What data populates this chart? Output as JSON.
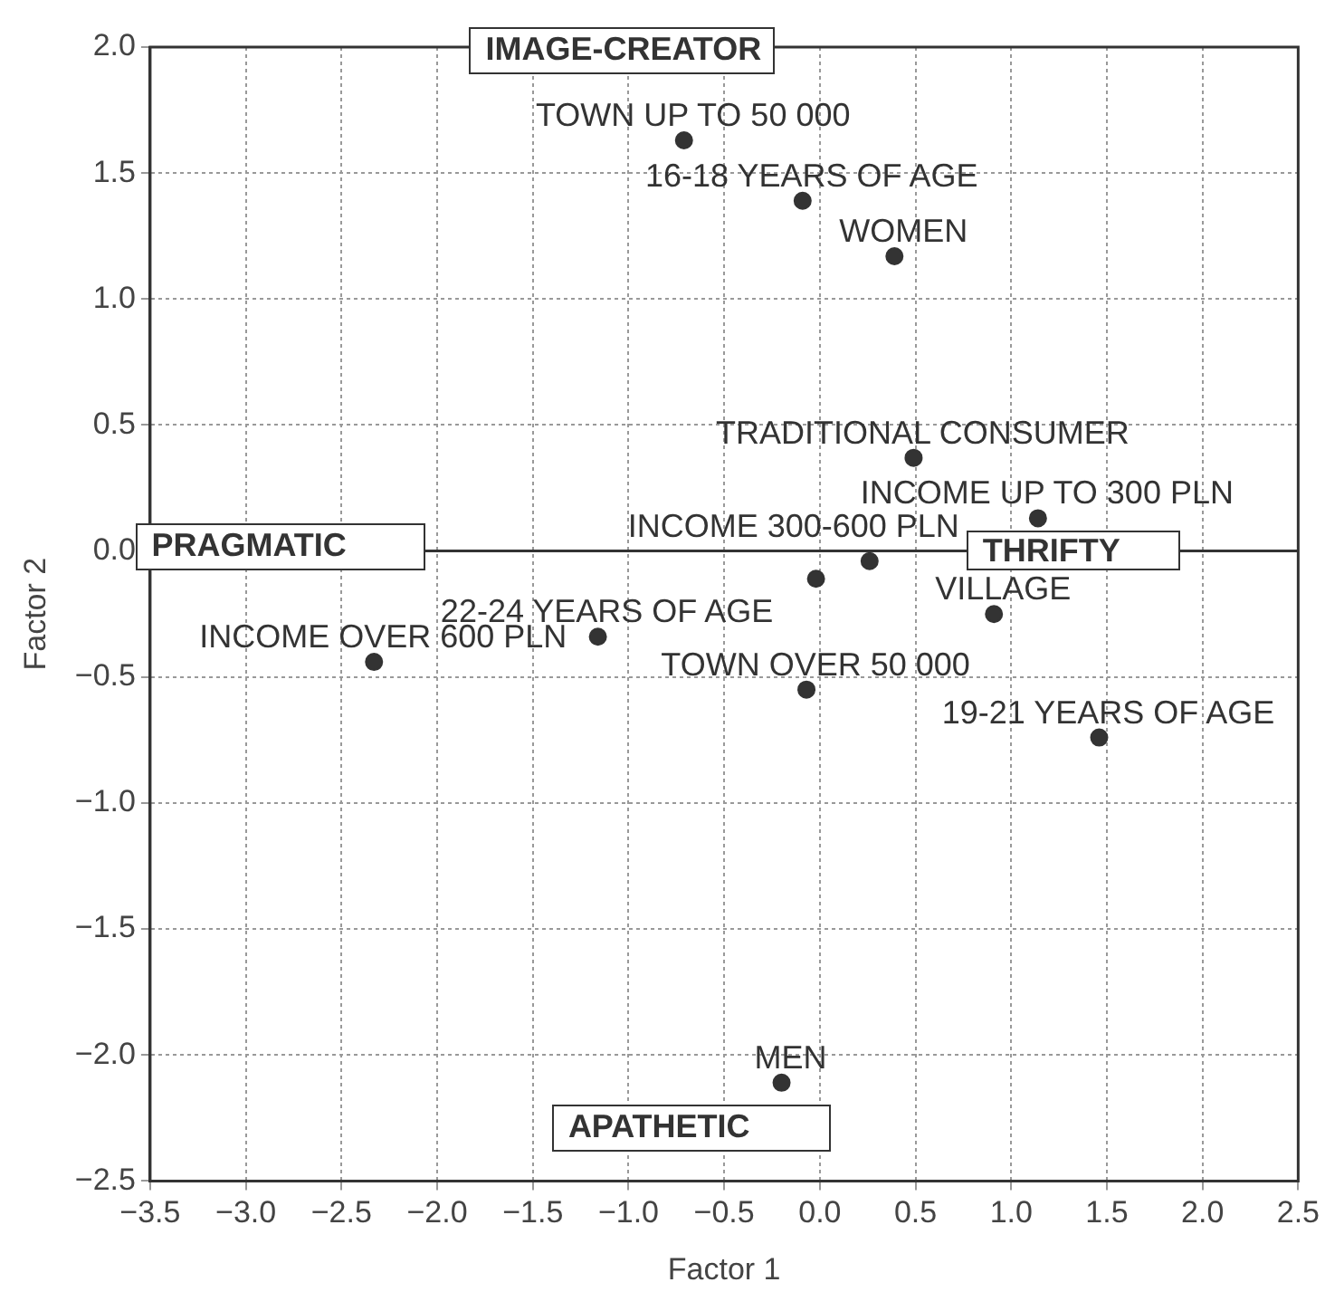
{
  "chart_data": {
    "type": "scatter",
    "xlabel": "Factor 1",
    "ylabel": "Factor 2",
    "x": [
      -0.71,
      -0.09,
      0.39,
      0.49,
      1.14,
      0.26,
      -0.02,
      0.91,
      -1.16,
      -2.33,
      -0.07,
      1.46,
      -0.2
    ],
    "series": [
      {
        "color": "#333333",
        "values": [
          1.63,
          1.39,
          1.17,
          0.37,
          0.13,
          -0.04,
          -0.11,
          -0.25,
          -0.34,
          -0.44,
          -0.55,
          -0.74,
          -2.11
        ]
      }
    ],
    "xlim": [
      -3.5,
      2.5
    ],
    "xticks": [
      {
        "value": -3.5,
        "label": "−3.5"
      },
      {
        "value": -3,
        "label": "−3.0"
      },
      {
        "value": -2.5,
        "label": "−2.5"
      },
      {
        "value": -2,
        "label": "−2.0"
      },
      {
        "value": -1.5,
        "label": "−1.5"
      },
      {
        "value": -1,
        "label": "−1.0"
      },
      {
        "value": -0.5,
        "label": "−0.5"
      },
      {
        "value": 0,
        "label": "0.0"
      },
      {
        "value": 0.5,
        "label": "0.5"
      },
      {
        "value": 1,
        "label": "1.0"
      },
      {
        "value": 1.5,
        "label": "1.5"
      },
      {
        "value": 2,
        "label": "2.0"
      },
      {
        "value": 2.5,
        "label": "2.5"
      }
    ],
    "ylim": [
      -2.5,
      2
    ],
    "yticks": [
      {
        "value": -2.5,
        "label": "−2.5"
      },
      {
        "value": -2,
        "label": "−2.0"
      },
      {
        "value": -1.5,
        "label": "−1.5"
      },
      {
        "value": -1,
        "label": "−1.0"
      },
      {
        "value": -0.5,
        "label": "−0.5"
      },
      {
        "value": 0,
        "label": "0.0"
      },
      {
        "value": 0.5,
        "label": "0.5"
      },
      {
        "value": 1,
        "label": "1.0"
      },
      {
        "value": 1.5,
        "label": "1.5"
      },
      {
        "value": 2,
        "label": "2.0"
      }
    ],
    "grid": true,
    "marker": "circle",
    "legend": false,
    "ref_lines": [
      {
        "axis": "y",
        "value": 0,
        "color": "#333333",
        "line_style": "solid"
      }
    ],
    "annotations": [
      "IMAGE-CREATOR",
      "PRAGMATIC",
      "THRIFTY",
      "APATHETIC",
      {
        "text": "TOWN UP TO 50 000",
        "x": -0.71,
        "y": 1.63
      },
      {
        "text": "16-18 YEARS OF AGE",
        "x": -0.09,
        "y": 1.39
      },
      {
        "text": "WOMEN",
        "x": 0.39,
        "y": 1.17
      },
      {
        "text": "TRADITIONAL CONSUMER",
        "x": 0.49,
        "y": 0.37
      },
      {
        "text": "INCOME UP TO 300 PLN",
        "x": 1.14,
        "y": 0.13
      },
      {
        "text": "INCOME 300-600 PLN",
        "x": -0.02,
        "y": -0.11
      },
      {
        "text": "VILLAGE",
        "x": 0.91,
        "y": -0.25
      },
      {
        "text": "22-24 YEARS OF AGE",
        "x": -1.16,
        "y": -0.34
      },
      {
        "text": "INCOME OVER 600 PLN",
        "x": -2.33,
        "y": -0.44
      },
      {
        "text": "TOWN OVER 50 000",
        "x": -0.07,
        "y": -0.55
      },
      {
        "text": "19-21 YEARS OF AGE",
        "x": 1.46,
        "y": -0.74
      },
      {
        "text": "MEN",
        "x": -0.2,
        "y": -2.11
      }
    ]
  }
}
